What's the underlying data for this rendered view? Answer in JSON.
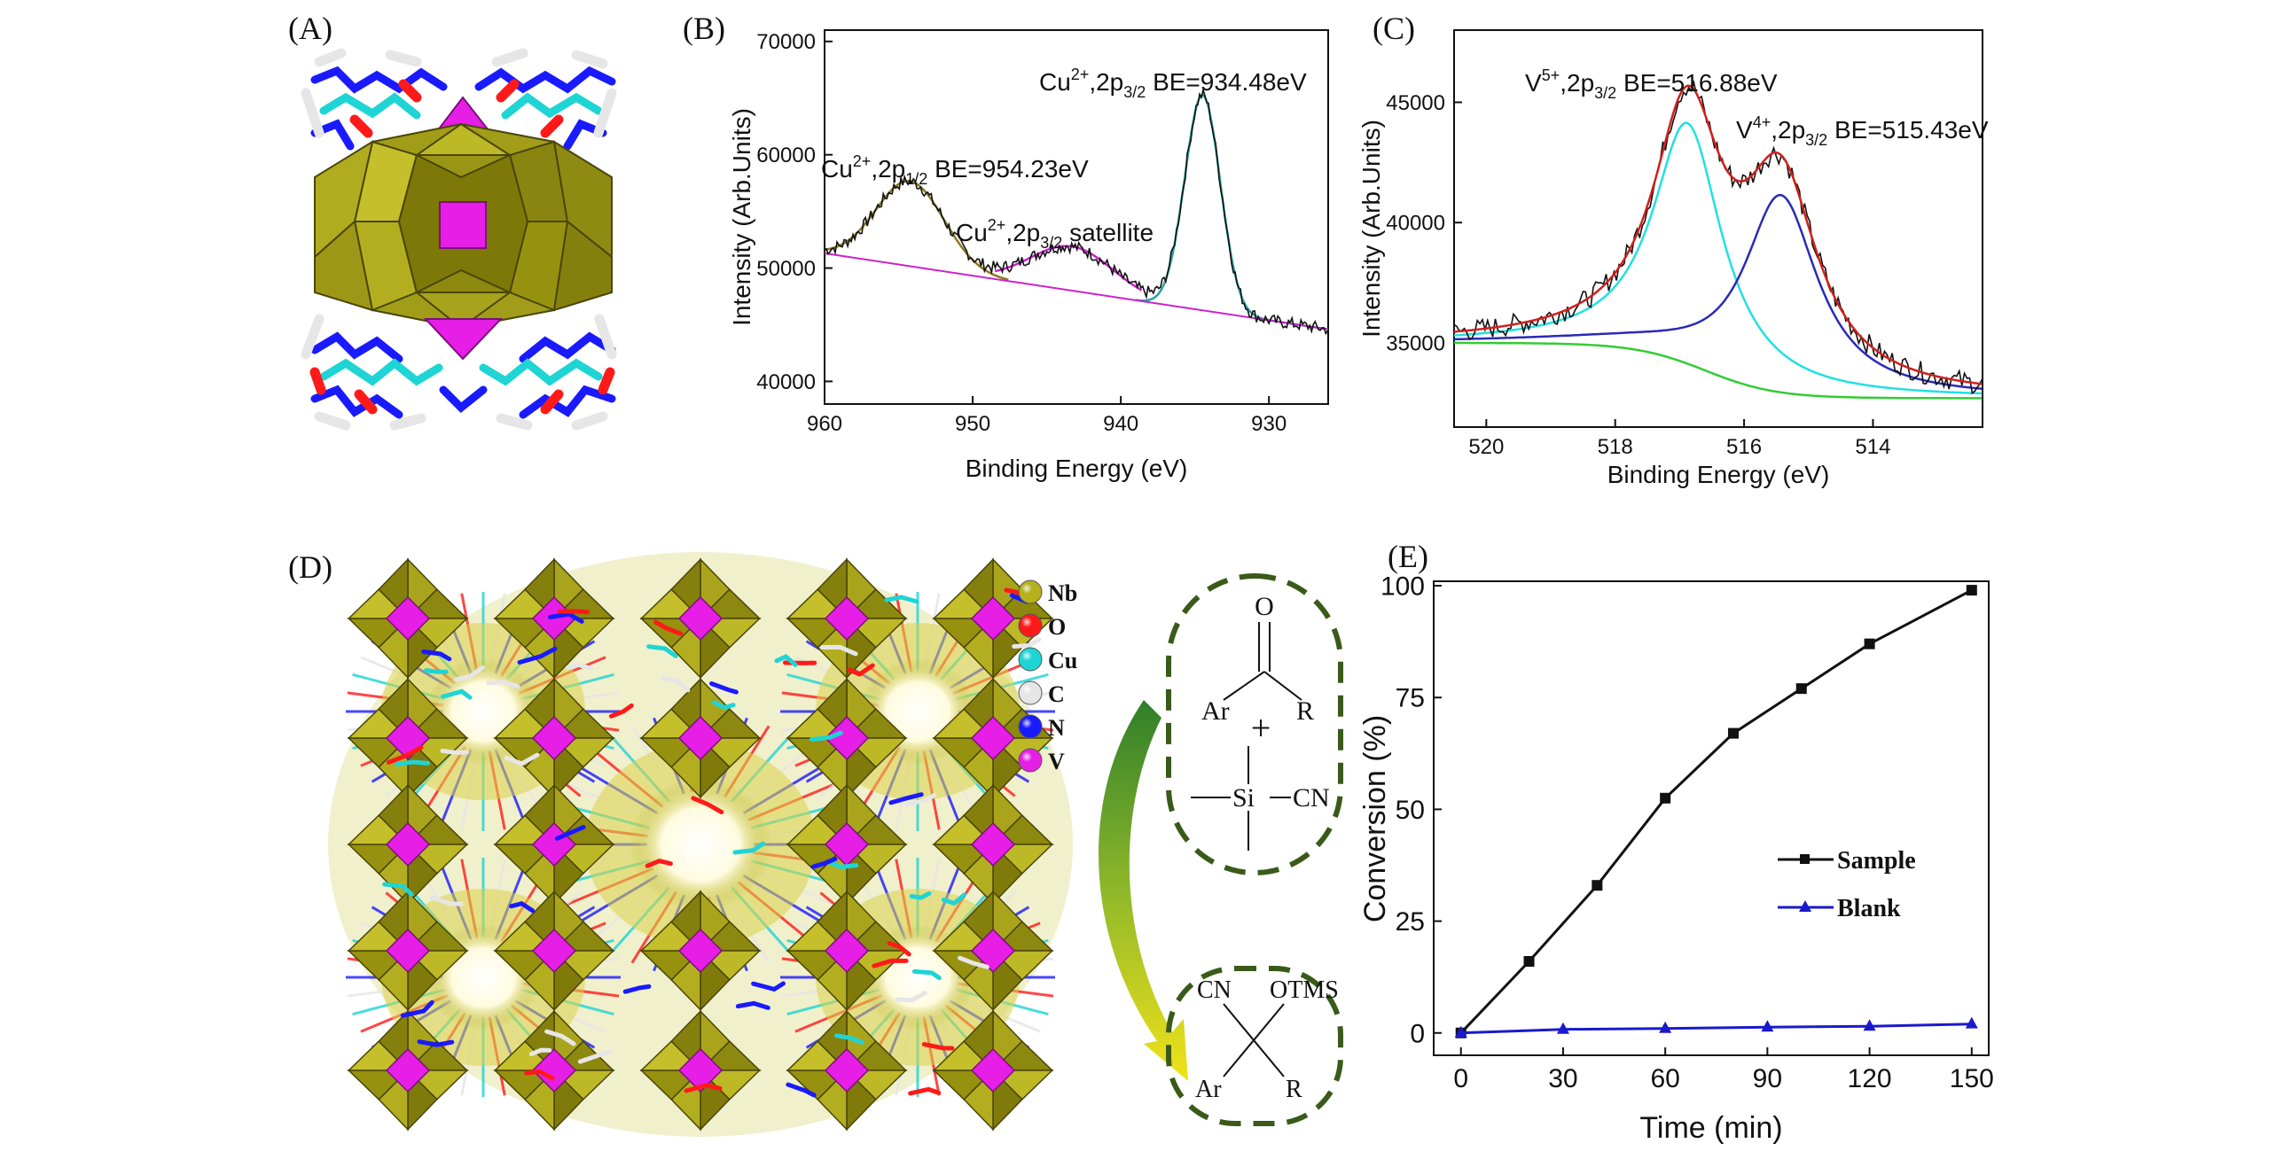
{
  "colors": {
    "nb": "#b5b01c",
    "o": "#ff1a1a",
    "cu": "#1fd4d4",
    "c": "#e6e6e6",
    "n": "#1a1aff",
    "v": "#e61ee6",
    "raw": "#111111",
    "fit_red": "#d0201c",
    "fit_cyan": "#22e0e0",
    "fit_blue": "#2a2ab8",
    "fit_green": "#33cc33",
    "fit_magenta": "#cc22cc",
    "fit_olive": "#8a7a20",
    "fit_teal": "#2aa0a0",
    "sample": "#111111",
    "blank": "#1a1acc",
    "arrow_green": "#3a8a2a",
    "arrow_yellow": "#f0e020",
    "dashed": "#3a5a1a"
  },
  "panels": {
    "a": {
      "label": "(A)"
    },
    "b": {
      "label": "(B)"
    },
    "c": {
      "label": "(C)"
    },
    "d": {
      "label": "(D)"
    },
    "e": {
      "label": "(E)"
    }
  },
  "legend_d": [
    {
      "label": "Nb",
      "color": "#b5b01c"
    },
    {
      "label": "O",
      "color": "#ff1a1a"
    },
    {
      "label": "Cu",
      "color": "#1fd4d4"
    },
    {
      "label": "C",
      "color": "#e6e6e6"
    },
    {
      "label": "N",
      "color": "#1a1aff"
    },
    {
      "label": "V",
      "color": "#e61ee6"
    }
  ],
  "reaction": {
    "o": "O",
    "ar1": "Ar",
    "r1": "R",
    "plus": "+",
    "si": "Si",
    "cn1": "CN",
    "cn2": "CN",
    "otms": "OTMS",
    "ar2": "Ar",
    "r2": "R"
  },
  "chart_data": [
    {
      "panel": "B",
      "type": "line",
      "xlabel": "Binding Energy (eV)",
      "ylabel": "Intensity (Arb.Units)",
      "xlim": [
        960,
        926
      ],
      "ylim": [
        38000,
        71000
      ],
      "xticks": [
        960,
        950,
        940,
        930
      ],
      "yticks": [
        40000,
        50000,
        60000,
        70000
      ],
      "annotations": [
        {
          "ion": "Cu",
          "charge": "2+",
          "orbital": "2p",
          "sub": "3/2",
          "text": " BE=934.48eV"
        },
        {
          "ion": "Cu",
          "charge": "2+",
          "orbital": "2p",
          "sub": "1/2",
          "text": " BE=954.23eV"
        },
        {
          "ion": "Cu",
          "charge": "2+",
          "orbital": "2p",
          "sub": "3/2",
          "text": " satellite"
        }
      ],
      "peaks": [
        {
          "center": 954.23,
          "height": 7500,
          "width": 2.3
        },
        {
          "center": 943.3,
          "height": 3900,
          "width": 2.8
        },
        {
          "center": 934.48,
          "height": 19000,
          "width": 1.2
        }
      ],
      "baseline": [
        [
          960,
          51300
        ],
        [
          926,
          44600
        ]
      ]
    },
    {
      "panel": "C",
      "type": "line",
      "xlabel": "Binding Energy (eV)",
      "ylabel": "Intensity (Arb.Units)",
      "xlim": [
        520.5,
        512.3
      ],
      "ylim": [
        31500,
        48000
      ],
      "xticks": [
        520,
        518,
        516,
        514
      ],
      "yticks": [
        35000,
        40000,
        45000
      ],
      "annotations": [
        {
          "ion": "V",
          "charge": "5+",
          "orbital": "2p",
          "sub": "3/2",
          "text": " BE=516.88eV"
        },
        {
          "ion": "V",
          "charge": "4+",
          "orbital": "2p",
          "sub": "3/2",
          "text": " BE=515.43eV"
        }
      ],
      "peaks": [
        {
          "center": 516.88,
          "height": 10000,
          "width": 0.65
        },
        {
          "center": 515.43,
          "height": 8200,
          "width": 0.7
        }
      ]
    },
    {
      "panel": "E",
      "type": "line",
      "xlabel": "Time (min)",
      "ylabel": "Conversion (%)",
      "xlim": [
        -8,
        155
      ],
      "ylim": [
        -5,
        101
      ],
      "xticks": [
        0,
        30,
        60,
        90,
        120,
        150
      ],
      "yticks": [
        0,
        25,
        50,
        75,
        100
      ],
      "legend": "center-right",
      "series": [
        {
          "name": "Sample",
          "marker": "square",
          "x": [
            0,
            20,
            40,
            60,
            80,
            100,
            120,
            150
          ],
          "y": [
            0,
            16,
            33,
            52.5,
            67,
            77,
            87,
            99
          ]
        },
        {
          "name": "Blank",
          "marker": "triangle",
          "x": [
            0,
            30,
            60,
            90,
            120,
            150
          ],
          "y": [
            0,
            0.8,
            1,
            1.3,
            1.5,
            2
          ]
        }
      ]
    }
  ]
}
